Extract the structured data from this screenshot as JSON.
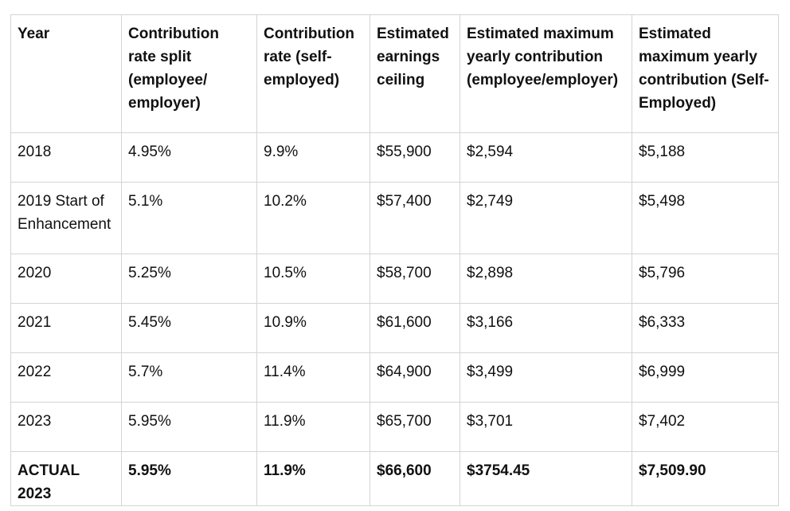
{
  "table": {
    "headers": [
      "Year",
      "Contribution rate split (employee/ employer)",
      "Contribution rate (self-employed)",
      "Estimated earnings ceiling",
      "Estimated maximum yearly contribution (employee/employer)",
      "Estimated maximum yearly contribution (Self-Employed)"
    ],
    "rows": [
      [
        "2018",
        "4.95%",
        "9.9%",
        "$55,900",
        "$2,594",
        "$5,188"
      ],
      [
        "2019 Start of Enhancement",
        "5.1%",
        "10.2%",
        "$57,400",
        "$2,749",
        "$5,498"
      ],
      [
        "2020",
        "5.25%",
        "10.5%",
        "$58,700",
        "$2,898",
        "$5,796"
      ],
      [
        "2021",
        "5.45%",
        "10.9%",
        "$61,600",
        "$3,166",
        "$6,333"
      ],
      [
        "2022",
        "5.7%",
        "11.4%",
        "$64,900",
        "$3,499",
        "$6,999"
      ],
      [
        "2023",
        "5.95%",
        "11.9%",
        "$65,700",
        "$3,701",
        "$7,402"
      ],
      [
        "ACTUAL 2023",
        "5.95%",
        "11.9%",
        "$66,600",
        "$3754.45",
        "$7,509.90"
      ]
    ]
  }
}
